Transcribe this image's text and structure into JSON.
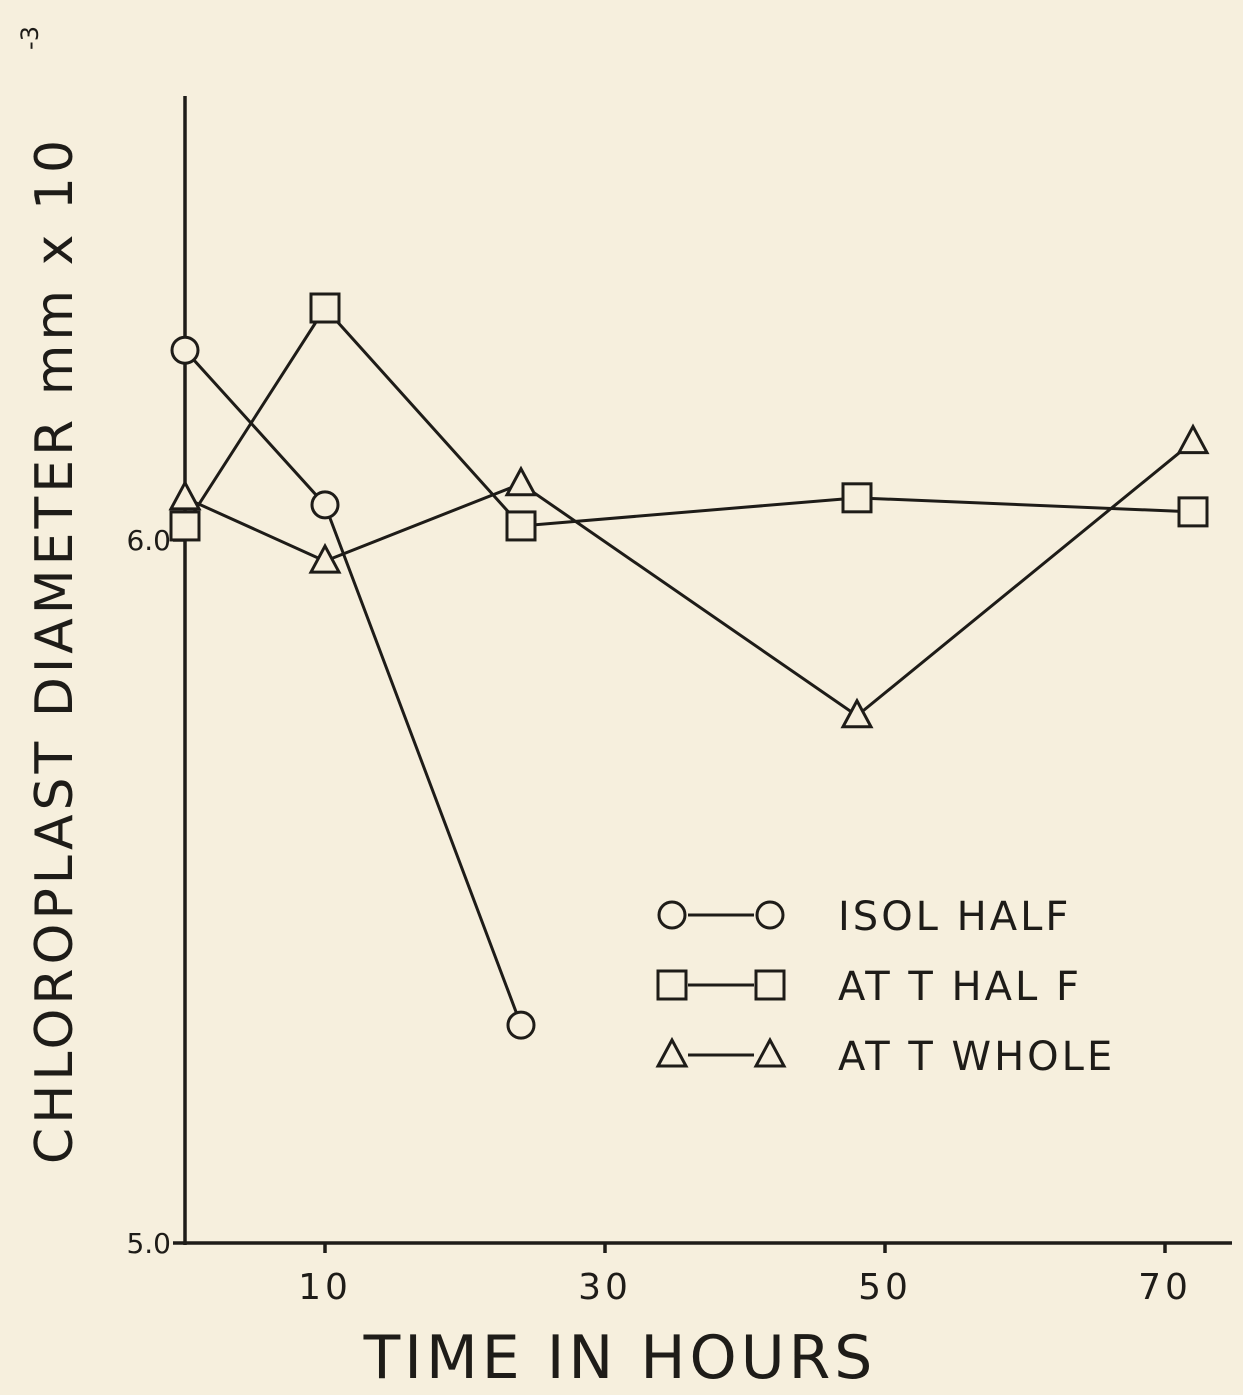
{
  "chart_data": {
    "type": "line",
    "xlabel": "TIME IN HOURS",
    "ylabel": "CHLOROPLAST  DIAMETER  mm x 10",
    "ylabel_exponent": "-3",
    "xlim": [
      -10,
      74
    ],
    "ylim": [
      5.0,
      6.75
    ],
    "x_ticks": [
      10,
      30,
      50,
      70
    ],
    "x_tick_labels": [
      "10",
      "30",
      "50",
      "70"
    ],
    "y_tick_labels": [
      {
        "value": 6.0,
        "label": "6.0"
      },
      {
        "value": 5.0,
        "label": "5.0"
      }
    ],
    "grid": false,
    "legend_position": "bottom-right",
    "series": [
      {
        "name": "ISOL HALF",
        "marker": "circle",
        "x": [
          0,
          10,
          24
        ],
        "y": [
          6.27,
          6.05,
          5.31
        ]
      },
      {
        "name": "ATT HALF",
        "marker": "square",
        "x": [
          0,
          10,
          24,
          48,
          72
        ],
        "y": [
          6.02,
          6.33,
          6.02,
          6.06,
          6.04
        ]
      },
      {
        "name": "ATT WHOLE",
        "marker": "triangle",
        "x": [
          0,
          10,
          24,
          48,
          72
        ],
        "y": [
          6.06,
          5.97,
          6.08,
          5.75,
          6.14
        ]
      }
    ],
    "legend_entries": [
      {
        "symbol": "circle",
        "label": "ISOL HALF"
      },
      {
        "symbol": "square",
        "label": "AT T  HAL F"
      },
      {
        "symbol": "triangle",
        "label": "AT T  WHOLE"
      }
    ]
  }
}
